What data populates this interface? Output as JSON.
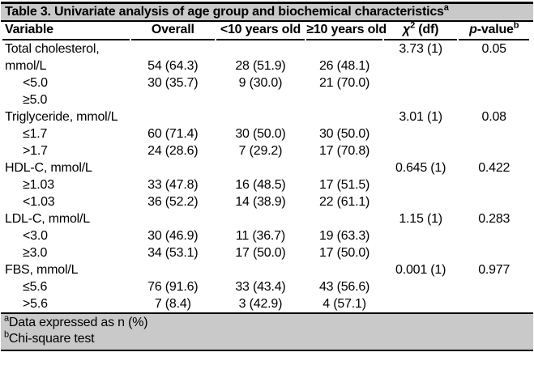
{
  "colors": {
    "band_gray": "#c9c9c9",
    "line_black": "#000000",
    "background": "#ffffff"
  },
  "table": {
    "title": "Table 3. Univariate analysis of age group and biochemical characteristics",
    "title_sup": "a",
    "header": {
      "variable": "Variable",
      "overall": "Overall",
      "under10": "<10 years old",
      "over10": "≥10 years old",
      "chi_symbol": "χ",
      "chi_sup": "2",
      "chi_df": " (df)",
      "p_italic": "p",
      "p_rest": "-value",
      "p_sup": "b"
    },
    "rows": [
      {
        "label": "Total cholesterol,",
        "indent": false,
        "overall": "",
        "under10": "",
        "over10": "",
        "chi": "3.73 (1)",
        "p": "0.05"
      },
      {
        "label": "mmol/L",
        "indent": false,
        "overall": "54 (64.3)",
        "under10": "28 (51.9)",
        "over10": "26 (48.1)",
        "chi": "",
        "p": ""
      },
      {
        "label": "<5.0",
        "indent": true,
        "overall": "30 (35.7)",
        "under10": "9 (30.0)",
        "over10": "21 (70.0)",
        "chi": "",
        "p": ""
      },
      {
        "label": "≥5.0",
        "indent": true,
        "overall": "",
        "under10": "",
        "over10": "",
        "chi": "",
        "p": ""
      },
      {
        "label": "Triglyceride, mmol/L",
        "indent": false,
        "overall": "",
        "under10": "",
        "over10": "",
        "chi": "3.01 (1)",
        "p": "0.08"
      },
      {
        "label": "≤1.7",
        "indent": true,
        "overall": "60 (71.4)",
        "under10": "30 (50.0)",
        "over10": "30 (50.0)",
        "chi": "",
        "p": ""
      },
      {
        "label": ">1.7",
        "indent": true,
        "overall": "24 (28.6)",
        "under10": "7 (29.2)",
        "over10": "17 (70.8)",
        "chi": "",
        "p": ""
      },
      {
        "label": "HDL-C, mmol/L",
        "indent": false,
        "overall": "",
        "under10": "",
        "over10": "",
        "chi": "0.645 (1)",
        "p": "0.422"
      },
      {
        "label": "≥1.03",
        "indent": true,
        "overall": "33 (47.8)",
        "under10": "16 (48.5)",
        "over10": "17 (51.5)",
        "chi": "",
        "p": ""
      },
      {
        "label": "<1.03",
        "indent": true,
        "overall": "36 (52.2)",
        "under10": "14 (38.9)",
        "over10": "22 (61.1)",
        "chi": "",
        "p": ""
      },
      {
        "label": "LDL-C, mmol/L",
        "indent": false,
        "overall": "",
        "under10": "",
        "over10": "",
        "chi": "1.15 (1)",
        "p": "0.283"
      },
      {
        "label": "<3.0",
        "indent": true,
        "overall": "30 (46.9)",
        "under10": "11 (36.7)",
        "over10": "19 (63.3)",
        "chi": "",
        "p": ""
      },
      {
        "label": "≥3.0",
        "indent": true,
        "overall": "34 (53.1)",
        "under10": "17 (50.0)",
        "over10": "17 (50.0)",
        "chi": "",
        "p": ""
      },
      {
        "label": "FBS, mmol/L",
        "indent": false,
        "overall": "",
        "under10": "",
        "over10": "",
        "chi": "0.001 (1)",
        "p": "0.977"
      },
      {
        "label": "≤5.6",
        "indent": true,
        "overall": "76 (91.6)",
        "under10": "33 (43.4)",
        "over10": "43 (56.6)",
        "chi": "",
        "p": ""
      },
      {
        "label": ">5.6",
        "indent": true,
        "overall": "7 (8.4)",
        "under10": "3 (42.9)",
        "over10": "4 (57.1)",
        "chi": "",
        "p": ""
      }
    ],
    "footnotes": [
      {
        "sup": "a",
        "text": "Data expressed as n (%)"
      },
      {
        "sup": "b",
        "text": "Chi-square test"
      }
    ]
  }
}
